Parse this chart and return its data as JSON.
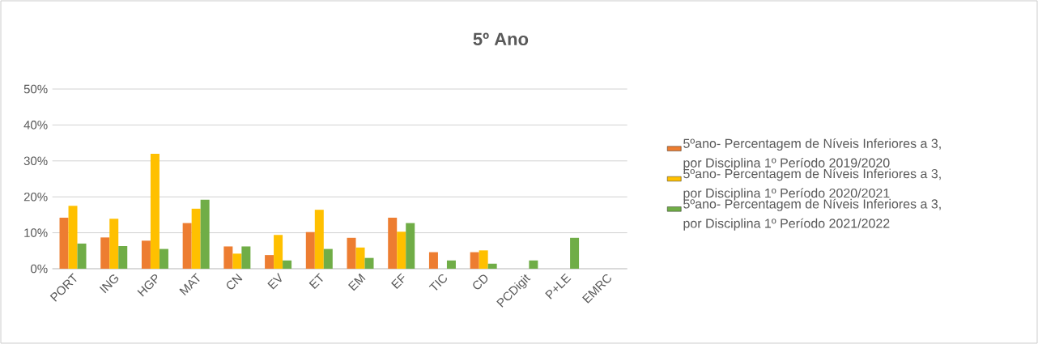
{
  "chart_data": {
    "type": "bar",
    "title": "5º Ano",
    "categories": [
      "PORT",
      "ING",
      "HGP",
      "MAT",
      "CN",
      "EV",
      "ET",
      "EM",
      "EF",
      "TIC",
      "CD",
      "PCDigit",
      "P+LE",
      "EMRC"
    ],
    "series": [
      {
        "name": "5ºano- Percentagem de Níveis Inferiores a 3, por Disciplina 1º Período 2019/2020",
        "color": "#ed7d31",
        "values": [
          14.2,
          8.7,
          7.8,
          12.7,
          6.2,
          3.8,
          10.2,
          8.6,
          14.2,
          4.6,
          4.6,
          null,
          null,
          null
        ]
      },
      {
        "name": "5ºano- Percentagem de Níveis Inferiores a 3, por Disciplina 1º Período 2020/2021",
        "color": "#ffc000",
        "values": [
          17.5,
          13.9,
          32.0,
          16.7,
          4.2,
          9.4,
          16.4,
          5.9,
          10.3,
          null,
          5.1,
          null,
          null,
          null
        ]
      },
      {
        "name": "5ºano- Percentagem de Níveis Inferiores a 3, por Disciplina 1º Período 2021/2022",
        "color": "#70ad47",
        "values": [
          7.0,
          6.3,
          5.5,
          19.2,
          6.2,
          2.3,
          5.5,
          3.0,
          12.7,
          2.3,
          1.4,
          2.3,
          8.6,
          null
        ]
      }
    ],
    "ylim": [
      0,
      50
    ],
    "yticks": [
      {
        "value": 0,
        "label": "0%"
      },
      {
        "value": 10,
        "label": "10%"
      },
      {
        "value": 20,
        "label": "20%"
      },
      {
        "value": 30,
        "label": "30%"
      },
      {
        "value": 40,
        "label": "40%"
      },
      {
        "value": 50,
        "label": "50%"
      }
    ],
    "grid": "y",
    "legend": "right"
  }
}
